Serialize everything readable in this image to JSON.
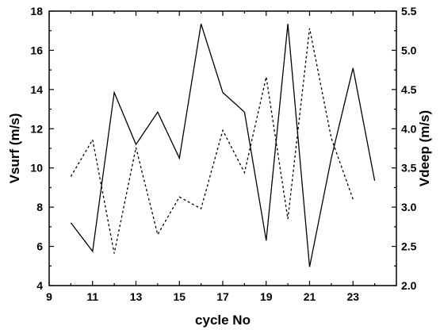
{
  "chart_data": {
    "type": "line",
    "title": "",
    "xlabel": "cycle No",
    "ylabel_left": "Vsurf (m/s)",
    "ylabel_right": "Vdeep (m/s)",
    "xlim": [
      9,
      25
    ],
    "ylim_left": [
      4,
      18
    ],
    "ylim_right": [
      2.0,
      5.5
    ],
    "x_ticks": [
      9,
      11,
      13,
      15,
      17,
      19,
      21,
      23
    ],
    "y_ticks_left": [
      4,
      6,
      8,
      10,
      12,
      14,
      16,
      18
    ],
    "y_ticks_right": [
      "2.0",
      "2.5",
      "3.0",
      "3.5",
      "4.0",
      "4.5",
      "5.0",
      "5.5"
    ],
    "grid": false,
    "series": [
      {
        "axis": "left",
        "style": "solid",
        "color": "#000000",
        "x": [
          10,
          11,
          12,
          13,
          14,
          15,
          16,
          17,
          18,
          19,
          20,
          21,
          22,
          23,
          24
        ],
        "values": [
          7.2,
          5.75,
          13.85,
          11.2,
          12.85,
          10.5,
          17.35,
          13.85,
          12.85,
          6.3,
          17.35,
          4.95,
          10.5,
          15.1,
          9.35
        ]
      },
      {
        "axis": "right",
        "style": "dashed",
        "color": "#000000",
        "x": [
          10,
          11,
          12,
          13,
          14,
          15,
          16,
          17,
          18,
          19,
          20,
          21,
          22,
          23
        ],
        "values": [
          3.39,
          3.86,
          2.41,
          3.76,
          2.65,
          3.13,
          2.98,
          3.98,
          3.44,
          4.66,
          2.85,
          5.28,
          3.88,
          3.1
        ]
      }
    ]
  }
}
